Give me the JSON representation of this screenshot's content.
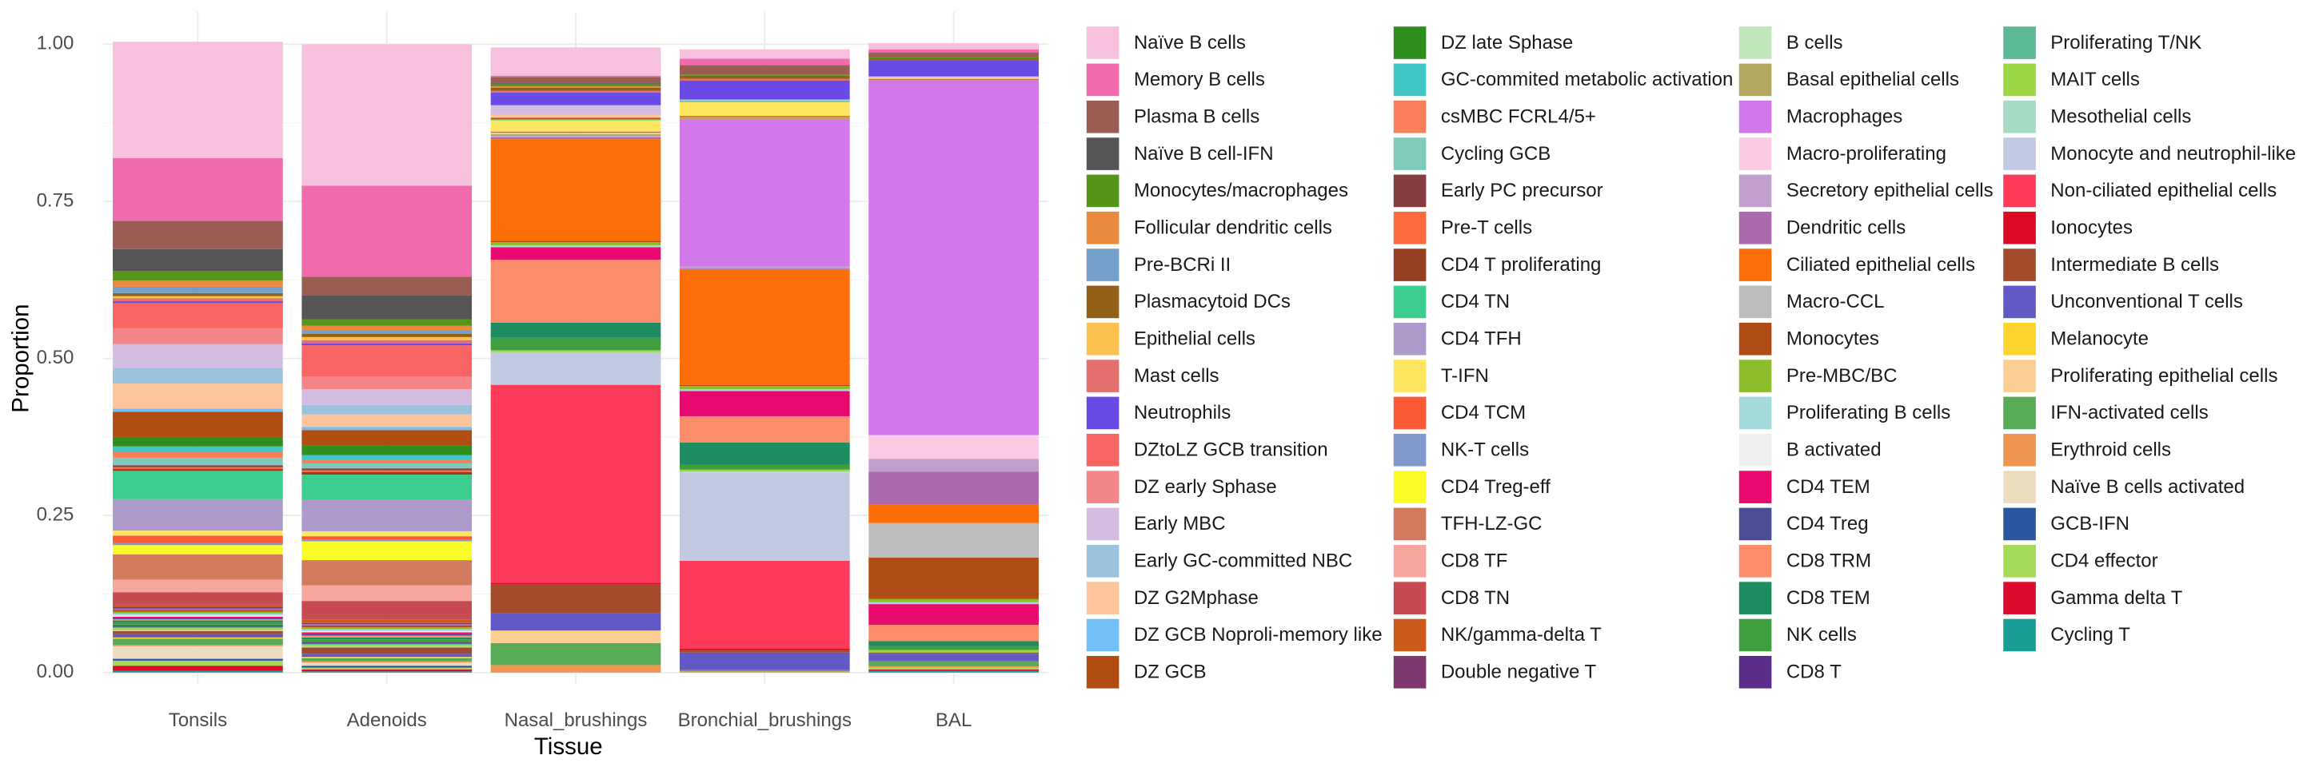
{
  "chart_data": {
    "type": "bar",
    "x_label": "Tissue",
    "y_label": "Proportion",
    "categories": [
      "Tonsils",
      "Adenoids",
      "Nasal_brushings",
      "Bronchial_brushings",
      "BAL"
    ],
    "ylim": [
      0,
      1.0
    ],
    "yticks": [
      {
        "value": 0,
        "label": "0.00"
      },
      {
        "value": 0.25,
        "label": "0.25"
      },
      {
        "value": 0.5,
        "label": "0.50"
      },
      {
        "value": 0.75,
        "label": "0.75"
      },
      {
        "value": 1.0,
        "label": "1.00"
      }
    ],
    "grid": true,
    "legend": "right",
    "series": [
      {
        "name": "Naïve B cells",
        "color": "#f7c0de",
        "values": [
          0.185,
          0.225,
          0.045,
          0.015,
          0.01
        ]
      },
      {
        "name": "Memory B cells",
        "color": "#f06aae",
        "values": [
          0.1,
          0.145,
          0.002,
          0.01,
          0.005
        ]
      },
      {
        "name": "Plasma B cells",
        "color": "#9a5d54",
        "values": [
          0.045,
          0.03,
          0.01,
          0.015,
          0.008
        ]
      },
      {
        "name": "Naïve B cell-IFN",
        "color": "#555555",
        "values": [
          0.035,
          0.038,
          0.002,
          0,
          0
        ]
      },
      {
        "name": "Monocytes/macrophages",
        "color": "#55951a",
        "values": [
          0.015,
          0.01,
          0.003,
          0.002,
          0.002
        ]
      },
      {
        "name": "Follicular dendritic cells",
        "color": "#ea8a3e",
        "values": [
          0.01,
          0.008,
          0.002,
          0,
          0
        ]
      },
      {
        "name": "Pre-BCRi II",
        "color": "#739fca",
        "values": [
          0.01,
          0.005,
          0,
          0,
          0
        ]
      },
      {
        "name": "Plasmacytoid DCs",
        "color": "#93601a",
        "values": [
          0.005,
          0.005,
          0.005,
          0.005,
          0.003
        ]
      },
      {
        "name": "Epithelial cells",
        "color": "#fdc14f",
        "values": [
          0.003,
          0.005,
          0,
          0,
          0
        ]
      },
      {
        "name": "Mast cells",
        "color": "#e3706c",
        "values": [
          0.005,
          0.005,
          0.003,
          0.003,
          0
        ]
      },
      {
        "name": "Neutrophils",
        "color": "#6a4ae4",
        "values": [
          0.003,
          0.003,
          0.02,
          0.03,
          0.025
        ]
      },
      {
        "name": "DZtoLZ GCB transition",
        "color": "#f76463",
        "values": [
          0.04,
          0.05,
          0,
          0,
          0
        ]
      },
      {
        "name": "DZ early  Sphase",
        "color": "#f4868a",
        "values": [
          0.025,
          0.02,
          0,
          0,
          0
        ]
      },
      {
        "name": "Early MBC",
        "color": "#d4bde0",
        "values": [
          0.038,
          0.025,
          0.015,
          0.002,
          0.002
        ]
      },
      {
        "name": "Early GC-committed NBC",
        "color": "#9bc3de",
        "values": [
          0.025,
          0.015,
          0,
          0,
          0
        ]
      },
      {
        "name": "DZ G2Mphase",
        "color": "#fcc59c",
        "values": [
          0.04,
          0.02,
          0.005,
          0,
          0
        ]
      },
      {
        "name": "DZ GCB Noproli-memory like",
        "color": "#73c0f6",
        "values": [
          0.005,
          0.005,
          0,
          0,
          0
        ]
      },
      {
        "name": "DZ GCB",
        "color": "#b24d12",
        "values": [
          0.04,
          0.025,
          0.002,
          0,
          0
        ]
      },
      {
        "name": "DZ late Sphase",
        "color": "#2e8e1e",
        "values": [
          0.015,
          0.015,
          0,
          0,
          0
        ]
      },
      {
        "name": "GC-commited metabolic activation",
        "color": "#3fc7c5",
        "values": [
          0.008,
          0.008,
          0,
          0,
          0
        ]
      },
      {
        "name": "csMBC FCRL4/5+",
        "color": "#f87f5a",
        "values": [
          0.01,
          0.005,
          0,
          0,
          0
        ]
      },
      {
        "name": "Cycling GCB",
        "color": "#7ecbbc",
        "values": [
          0.012,
          0.008,
          0,
          0,
          0
        ]
      },
      {
        "name": "Early PC precursor",
        "color": "#843e3f",
        "values": [
          0.003,
          0.003,
          0,
          0,
          0
        ]
      },
      {
        "name": "Pre-T cells",
        "color": "#fd6a3d",
        "values": [
          0.003,
          0.003,
          0,
          0,
          0
        ]
      },
      {
        "name": "CD4 T proliferating",
        "color": "#963f22",
        "values": [
          0.003,
          0.004,
          0,
          0,
          0
        ]
      },
      {
        "name": "CD4 TN",
        "color": "#3dce8f",
        "values": [
          0.045,
          0.04,
          0.002,
          0.002,
          0
        ]
      },
      {
        "name": "CD4 TFH",
        "color": "#ae9bcb",
        "values": [
          0.05,
          0.05,
          0,
          0,
          0
        ]
      },
      {
        "name": "T-IFN",
        "color": "#fee660",
        "values": [
          0.008,
          0.008,
          0.018,
          0.022,
          0.002
        ]
      },
      {
        "name": "CD4 TCM",
        "color": "#fc5a34",
        "values": [
          0.012,
          0.005,
          0.002,
          0.002,
          0.002
        ]
      },
      {
        "name": "NK-T cells",
        "color": "#8098cc",
        "values": [
          0.003,
          0.003,
          0,
          0,
          0
        ]
      },
      {
        "name": "CD4 Treg-eff",
        "color": "#fbfb2a",
        "values": [
          0.015,
          0.03,
          0,
          0,
          0
        ]
      },
      {
        "name": "TFH-LZ-GC",
        "color": "#d2795e",
        "values": [
          0.04,
          0.04,
          0,
          0,
          0
        ]
      },
      {
        "name": "CD8 TF",
        "color": "#f7a69f",
        "values": [
          0.02,
          0.025,
          0,
          0,
          0
        ]
      },
      {
        "name": "CD8 TN",
        "color": "#c54a51",
        "values": [
          0.02,
          0.03,
          0,
          0,
          0
        ]
      },
      {
        "name": "NK/gamma-delta T",
        "color": "#cb5b1b",
        "values": [
          0.003,
          0.005,
          0,
          0,
          0
        ]
      },
      {
        "name": "Double negative T",
        "color": "#7d3870",
        "values": [
          0.003,
          0.002,
          0,
          0,
          0
        ]
      },
      {
        "name": "B cells",
        "color": "#c2e6bb",
        "values": [
          0,
          0,
          0.002,
          0,
          0
        ]
      },
      {
        "name": "Basal epithelial cells",
        "color": "#b4a95f",
        "values": [
          0,
          0,
          0.003,
          0.003,
          0
        ]
      },
      {
        "name": "Macrophages",
        "color": "#d179ea",
        "values": [
          0,
          0,
          0,
          0.235,
          0.565
        ]
      },
      {
        "name": "Macro-proliferating",
        "color": "#fbcbe6",
        "values": [
          0,
          0,
          0,
          0,
          0.038
        ]
      },
      {
        "name": "Secretory epithelial cells",
        "color": "#c09fce",
        "values": [
          0,
          0,
          0.002,
          0.003,
          0.02
        ]
      },
      {
        "name": "Dendritic cells",
        "color": "#ab6aad",
        "values": [
          0.002,
          0.002,
          0.003,
          0.002,
          0.052
        ]
      },
      {
        "name": "Ciliated epithelial cells",
        "color": "#fb6e08",
        "values": [
          0,
          0,
          0.162,
          0.183,
          0.03
        ]
      },
      {
        "name": "Macro-CCL",
        "color": "#bdbdbd",
        "values": [
          0,
          0,
          0,
          0,
          0.055
        ]
      },
      {
        "name": "Monocytes",
        "color": "#b04c16",
        "values": [
          0.003,
          0.003,
          0.002,
          0.002,
          0.066
        ]
      },
      {
        "name": "Pre-MBC/BC",
        "color": "#8dbd2b",
        "values": [
          0.003,
          0.003,
          0.005,
          0.005,
          0.005
        ]
      },
      {
        "name": "Proliferating B cells",
        "color": "#a6dbde",
        "values": [
          0.003,
          0.003,
          0.003,
          0.003,
          0.003
        ]
      },
      {
        "name": "B activated",
        "color": "#efefef",
        "values": [
          0.002,
          0.002,
          0,
          0,
          0
        ]
      },
      {
        "name": "CD4 TEM",
        "color": "#e80a6e",
        "values": [
          0.002,
          0.003,
          0.02,
          0.04,
          0.033
        ]
      },
      {
        "name": "CD4 Treg",
        "color": "#4b4e96",
        "values": [
          0.002,
          0.002,
          0,
          0,
          0
        ]
      },
      {
        "name": "CD8 TRM",
        "color": "#fc8d6a",
        "values": [
          0.002,
          0.003,
          0.1,
          0.042,
          0.026
        ]
      },
      {
        "name": "CD8 TEM",
        "color": "#1d8c60",
        "values": [
          0.003,
          0.003,
          0.024,
          0.035,
          0.008
        ]
      },
      {
        "name": "NK cells",
        "color": "#3f9f3e",
        "values": [
          0.005,
          0.005,
          0.02,
          0.008,
          0.006
        ]
      },
      {
        "name": "CD8 T",
        "color": "#5b2d8b",
        "values": [
          0.002,
          0.002,
          0,
          0,
          0
        ]
      },
      {
        "name": "Proliferating T/NK",
        "color": "#5cb996",
        "values": [
          0.002,
          0.002,
          0,
          0,
          0
        ]
      },
      {
        "name": "MAIT cells",
        "color": "#9dd645",
        "values": [
          0.003,
          0.002,
          0.003,
          0.003,
          0.004
        ]
      },
      {
        "name": "Mesothelial cells",
        "color": "#a6dcc5",
        "values": [
          0.002,
          0.002,
          0,
          0.002,
          0
        ]
      },
      {
        "name": "Monocyte and neutrophil-like",
        "color": "#c2cae2",
        "values": [
          0,
          0,
          0.052,
          0.14,
          0
        ]
      },
      {
        "name": "Non-ciliated epithelial cells",
        "color": "#fc3a5a",
        "values": [
          0,
          0,
          0.315,
          0.14,
          0
        ]
      },
      {
        "name": "Ionocytes",
        "color": "#dc0a22",
        "values": [
          0,
          0,
          0.003,
          0.002,
          0
        ]
      },
      {
        "name": "Intermediate B cells",
        "color": "#a44b2b",
        "values": [
          0.005,
          0.01,
          0.045,
          0.004,
          0.002
        ]
      },
      {
        "name": "Unconventional T cells",
        "color": "#6359c6",
        "values": [
          0.005,
          0.005,
          0.028,
          0.028,
          0.012
        ]
      },
      {
        "name": "Melanocyte",
        "color": "#fcd42c",
        "values": [
          0.002,
          0.002,
          0.002,
          0,
          0
        ]
      },
      {
        "name": "Proliferating epithelial cells",
        "color": "#fccf95",
        "values": [
          0,
          0,
          0.018,
          0,
          0
        ]
      },
      {
        "name": "IFN-activated cells",
        "color": "#58ab56",
        "values": [
          0.01,
          0.005,
          0.035,
          0.002,
          0.008
        ]
      },
      {
        "name": "Erythroid cells",
        "color": "#ef9650",
        "values": [
          0.002,
          0.002,
          0.012,
          0.002,
          0.002
        ]
      },
      {
        "name": "Naïve B cells activated",
        "color": "#ecdcc0",
        "values": [
          0.02,
          0.005,
          0,
          0,
          0
        ]
      },
      {
        "name": "GCB-IFN",
        "color": "#2b57a1",
        "values": [
          0.003,
          0.003,
          0,
          0,
          0
        ]
      },
      {
        "name": "CD4 effector",
        "color": "#a6d956",
        "values": [
          0.008,
          0.003,
          0,
          0,
          0.003
        ]
      },
      {
        "name": "Gamma delta T",
        "color": "#dc0a2c",
        "values": [
          0.008,
          0.003,
          0,
          0,
          0.002
        ]
      },
      {
        "name": "Cycling T",
        "color": "#199e97",
        "values": [
          0.003,
          0.002,
          0,
          0,
          0.003
        ]
      }
    ]
  }
}
